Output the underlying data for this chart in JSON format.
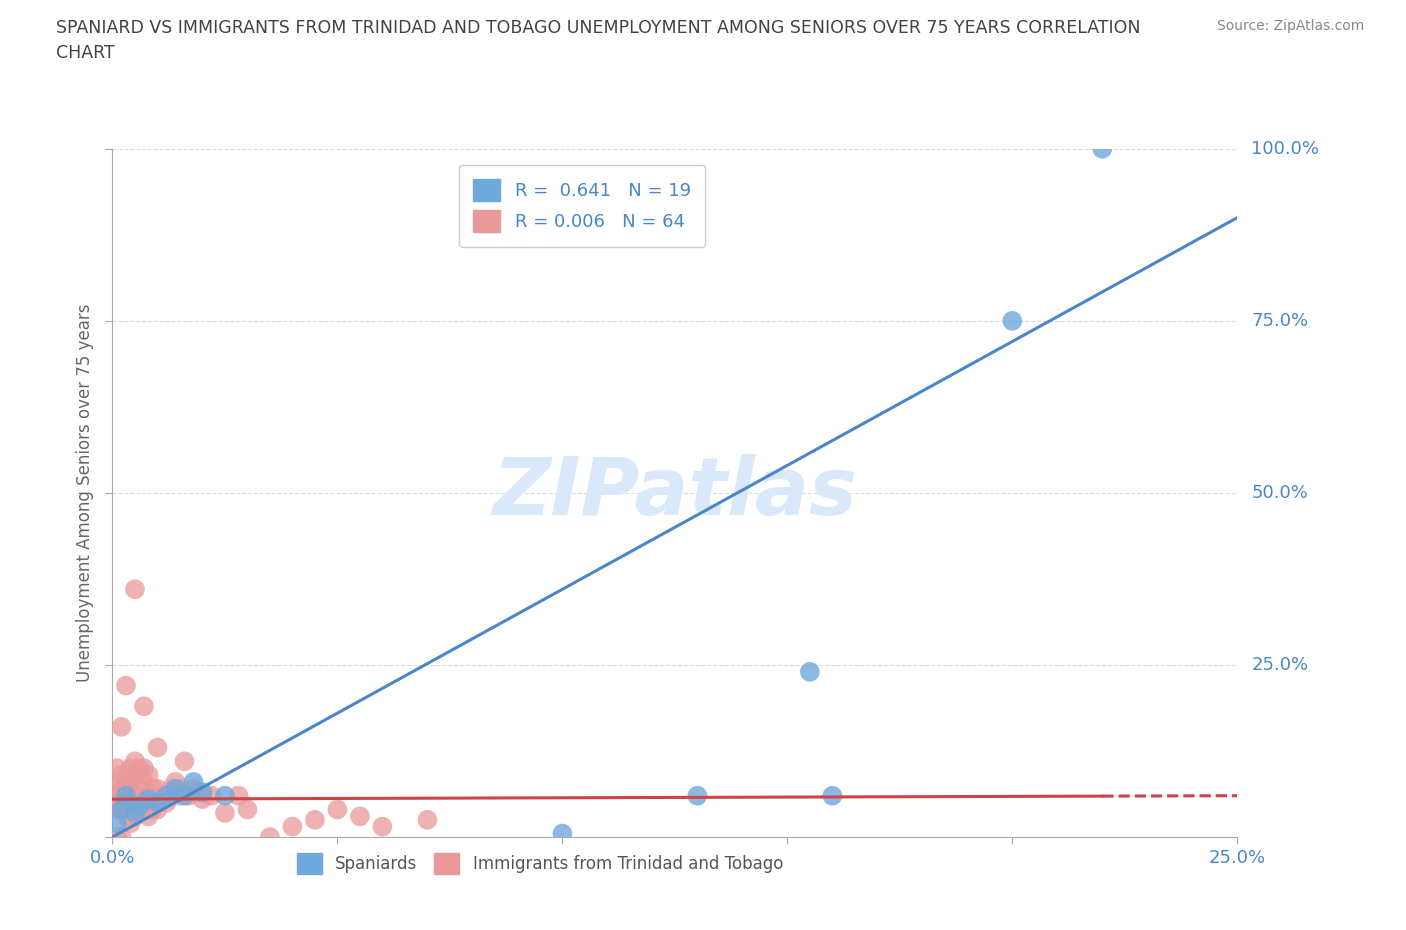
{
  "title": "SPANIARD VS IMMIGRANTS FROM TRINIDAD AND TOBAGO UNEMPLOYMENT AMONG SENIORS OVER 75 YEARS CORRELATION\nCHART",
  "source_text": "Source: ZipAtlas.com",
  "ylabel": "Unemployment Among Seniors over 75 years",
  "xlim": [
    0.0,
    0.25
  ],
  "ylim": [
    0.0,
    1.0
  ],
  "xticks": [
    0.0,
    0.05,
    0.1,
    0.15,
    0.2,
    0.25
  ],
  "yticks": [
    0.0,
    0.25,
    0.5,
    0.75,
    1.0
  ],
  "blue_color": "#6fa8dc",
  "pink_color": "#ea9999",
  "blue_line_color": "#4a86c8",
  "pink_line_color": "#cc4444",
  "watermark": "ZIPatlas",
  "watermark_color": "#d9e8fb",
  "legend_R_blue": "0.641",
  "legend_N_blue": "19",
  "legend_R_pink": "0.006",
  "legend_N_pink": "64",
  "blue_scatter_x": [
    0.001,
    0.002,
    0.003,
    0.005,
    0.006,
    0.008,
    0.01,
    0.012,
    0.014,
    0.016,
    0.018,
    0.02,
    0.025,
    0.1,
    0.13,
    0.155,
    0.16,
    0.2,
    0.22
  ],
  "blue_scatter_y": [
    0.02,
    0.04,
    0.06,
    0.035,
    0.045,
    0.055,
    0.05,
    0.06,
    0.07,
    0.06,
    0.08,
    0.065,
    0.06,
    0.005,
    0.06,
    0.24,
    0.06,
    0.75,
    1.0
  ],
  "pink_scatter_x": [
    0.001,
    0.001,
    0.001,
    0.001,
    0.001,
    0.001,
    0.002,
    0.002,
    0.002,
    0.002,
    0.002,
    0.003,
    0.003,
    0.003,
    0.003,
    0.003,
    0.004,
    0.004,
    0.004,
    0.004,
    0.005,
    0.005,
    0.005,
    0.005,
    0.006,
    0.006,
    0.006,
    0.006,
    0.007,
    0.007,
    0.007,
    0.008,
    0.008,
    0.008,
    0.009,
    0.009,
    0.01,
    0.01,
    0.011,
    0.012,
    0.013,
    0.014,
    0.015,
    0.016,
    0.017,
    0.018,
    0.02,
    0.022,
    0.025,
    0.028,
    0.03,
    0.035,
    0.04,
    0.045,
    0.05,
    0.055,
    0.06,
    0.07,
    0.002,
    0.003,
    0.005,
    0.007,
    0.01,
    0.015
  ],
  "pink_scatter_y": [
    0.05,
    0.08,
    0.1,
    0.04,
    0.06,
    0.0,
    0.07,
    0.04,
    0.06,
    0.09,
    0.0,
    0.05,
    0.03,
    0.06,
    0.08,
    0.04,
    0.02,
    0.05,
    0.08,
    0.1,
    0.03,
    0.06,
    0.09,
    0.11,
    0.04,
    0.07,
    0.1,
    0.04,
    0.05,
    0.08,
    0.1,
    0.03,
    0.06,
    0.09,
    0.04,
    0.07,
    0.04,
    0.07,
    0.06,
    0.05,
    0.07,
    0.08,
    0.07,
    0.11,
    0.06,
    0.07,
    0.055,
    0.06,
    0.035,
    0.06,
    0.04,
    0.0,
    0.015,
    0.025,
    0.04,
    0.03,
    0.015,
    0.025,
    0.16,
    0.22,
    0.36,
    0.19,
    0.13,
    0.06
  ],
  "blue_trendline_x": [
    0.0,
    0.25
  ],
  "blue_trendline_y": [
    0.0,
    0.9
  ],
  "pink_trendline_x": [
    0.0,
    0.25
  ],
  "pink_trendline_y": [
    0.055,
    0.06
  ],
  "grid_color": "#cccccc",
  "background_color": "#ffffff",
  "title_color": "#434343",
  "label_color": "#4a86c8",
  "axis_label_color": "#666666"
}
